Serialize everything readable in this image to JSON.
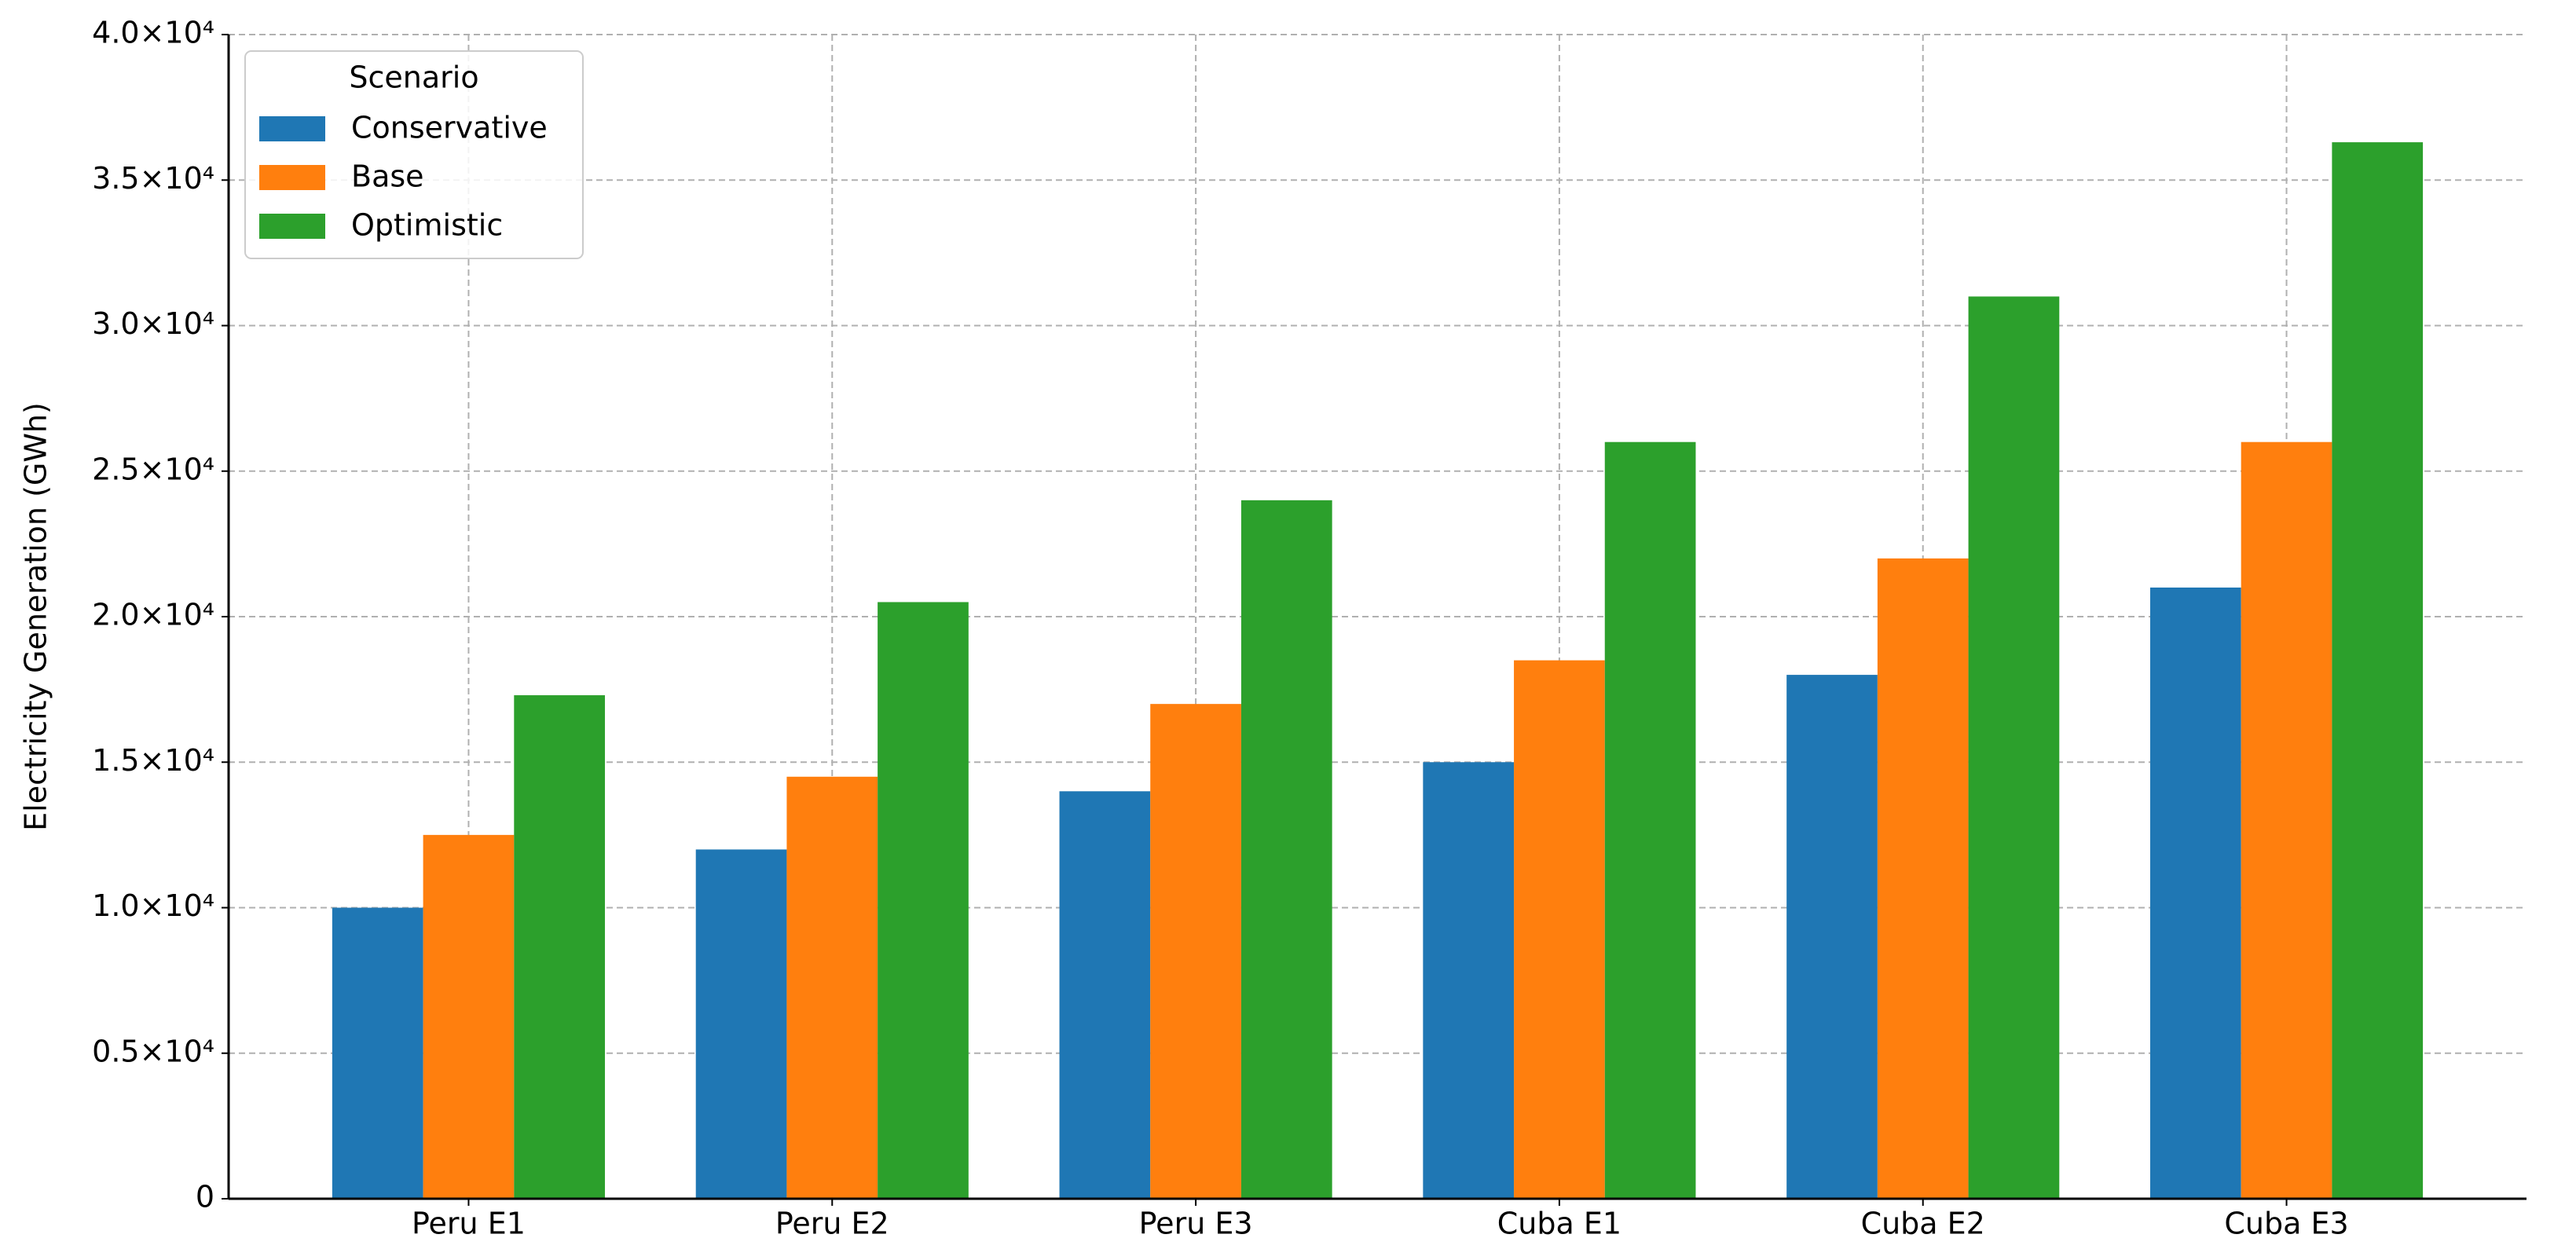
{
  "chart_data": {
    "type": "bar",
    "y_label": "Electricity Generation (GWh)",
    "categories": [
      "Peru E1",
      "Peru E2",
      "Peru E3",
      "Cuba E1",
      "Cuba E2",
      "Cuba E3"
    ],
    "series": [
      {
        "name": "Conservative",
        "color": "#1f77b4",
        "values": [
          10000,
          12000,
          14000,
          15000,
          18000,
          21000
        ]
      },
      {
        "name": "Base",
        "color": "#ff7f0e",
        "values": [
          12500,
          14500,
          17000,
          18500,
          22000,
          26000
        ]
      },
      {
        "name": "Optimistic",
        "color": "#2ca02c",
        "values": [
          17300,
          20500,
          24000,
          26000,
          31000,
          36300
        ]
      }
    ],
    "ylim": [
      0,
      40000
    ],
    "yticks": [
      0,
      {
        "value": 5000,
        "label": "0.5×10⁴"
      },
      {
        "value": 10000,
        "label": "1.0×10⁴"
      },
      {
        "value": 15000,
        "label": "1.5×10⁴"
      },
      {
        "value": 20000,
        "label": "2.0×10⁴"
      },
      {
        "value": 25000,
        "label": "2.5×10⁴"
      },
      {
        "value": 30000,
        "label": "3.0×10⁴"
      },
      {
        "value": 35000,
        "label": "3.5×10⁴"
      },
      {
        "value": 40000,
        "label": "4.0×10⁴"
      }
    ],
    "grid": true,
    "legend_title": "Scenario",
    "legend_position": "upper left"
  }
}
